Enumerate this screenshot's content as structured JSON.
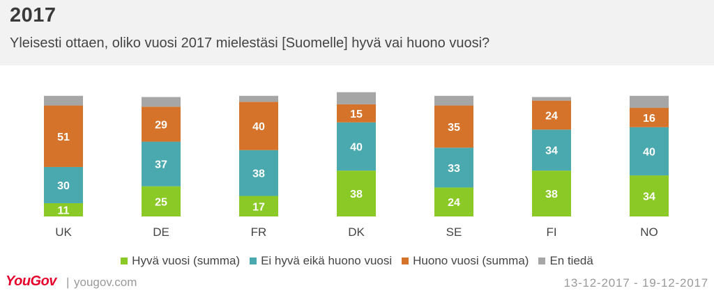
{
  "header": {
    "title": "2017",
    "subtitle": "Yleisesti ottaen, oliko vuosi 2017 mielestäsi [Suomelle] hyvä vai huono vuosi?"
  },
  "chart_data": {
    "type": "bar",
    "stacked": true,
    "categories": [
      "UK",
      "DE",
      "FR",
      "DK",
      "SE",
      "FI",
      "NO"
    ],
    "series": [
      {
        "name": "Hyvä vuosi (summa)",
        "color": "#8ac926",
        "values": [
          11,
          25,
          17,
          38,
          24,
          38,
          34
        ]
      },
      {
        "name": "Ei hyvä eikä huono vuosi",
        "color": "#4aa9ae",
        "values": [
          30,
          37,
          38,
          40,
          33,
          34,
          40
        ]
      },
      {
        "name": "Huono vuosi (summa)",
        "color": "#d5732a",
        "values": [
          51,
          29,
          40,
          15,
          35,
          24,
          16
        ]
      },
      {
        "name": "En tiedä",
        "color": "#a6a6a6",
        "values": [
          8,
          8,
          5,
          10,
          8,
          3,
          10
        ]
      }
    ],
    "ylim": [
      0,
      100
    ],
    "labeled_series": [
      0,
      1,
      2
    ],
    "legend_position": "bottom"
  },
  "footer": {
    "brand": "YouGov",
    "separator": "|",
    "site": "yougov.com",
    "date_range": "13-12-2017 - 19-12-2017"
  }
}
